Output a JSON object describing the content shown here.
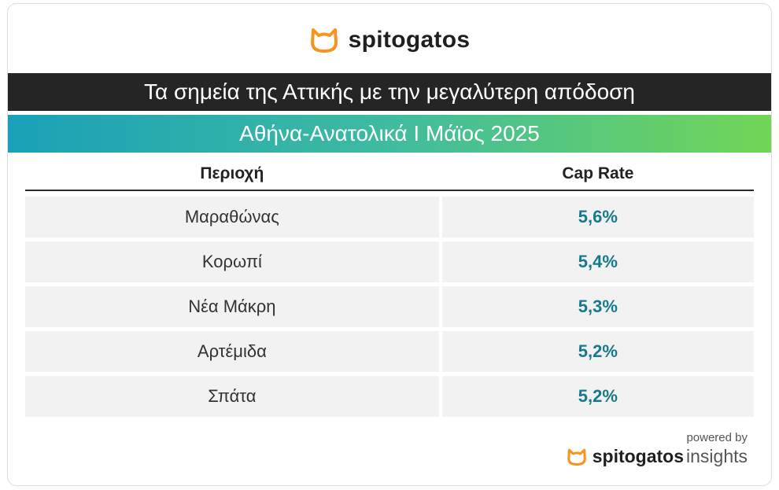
{
  "brand": {
    "name": "spitogatos",
    "logo_color": "#f7941d"
  },
  "footer": {
    "powered_by": "powered by",
    "brand_name": "spitogatos",
    "brand_suffix": "insights"
  },
  "chart_data": {
    "type": "table",
    "title": "Τα σημεία της Αττικής με την μεγαλύτερη απόδοση",
    "subtitle": "Αθήνα-Ανατολικά I Μάϊος 2025",
    "columns": [
      "Περιοχή",
      "Cap Rate"
    ],
    "rows": [
      {
        "area": "Μαραθώνας",
        "cap_rate": "5,6%"
      },
      {
        "area": "Κορωπί",
        "cap_rate": "5,4%"
      },
      {
        "area": "Νέα Μάκρη",
        "cap_rate": "5,3%"
      },
      {
        "area": "Αρτέμιδα",
        "cap_rate": "5,2%"
      },
      {
        "area": "Σπάτα",
        "cap_rate": "5,2%"
      }
    ]
  }
}
